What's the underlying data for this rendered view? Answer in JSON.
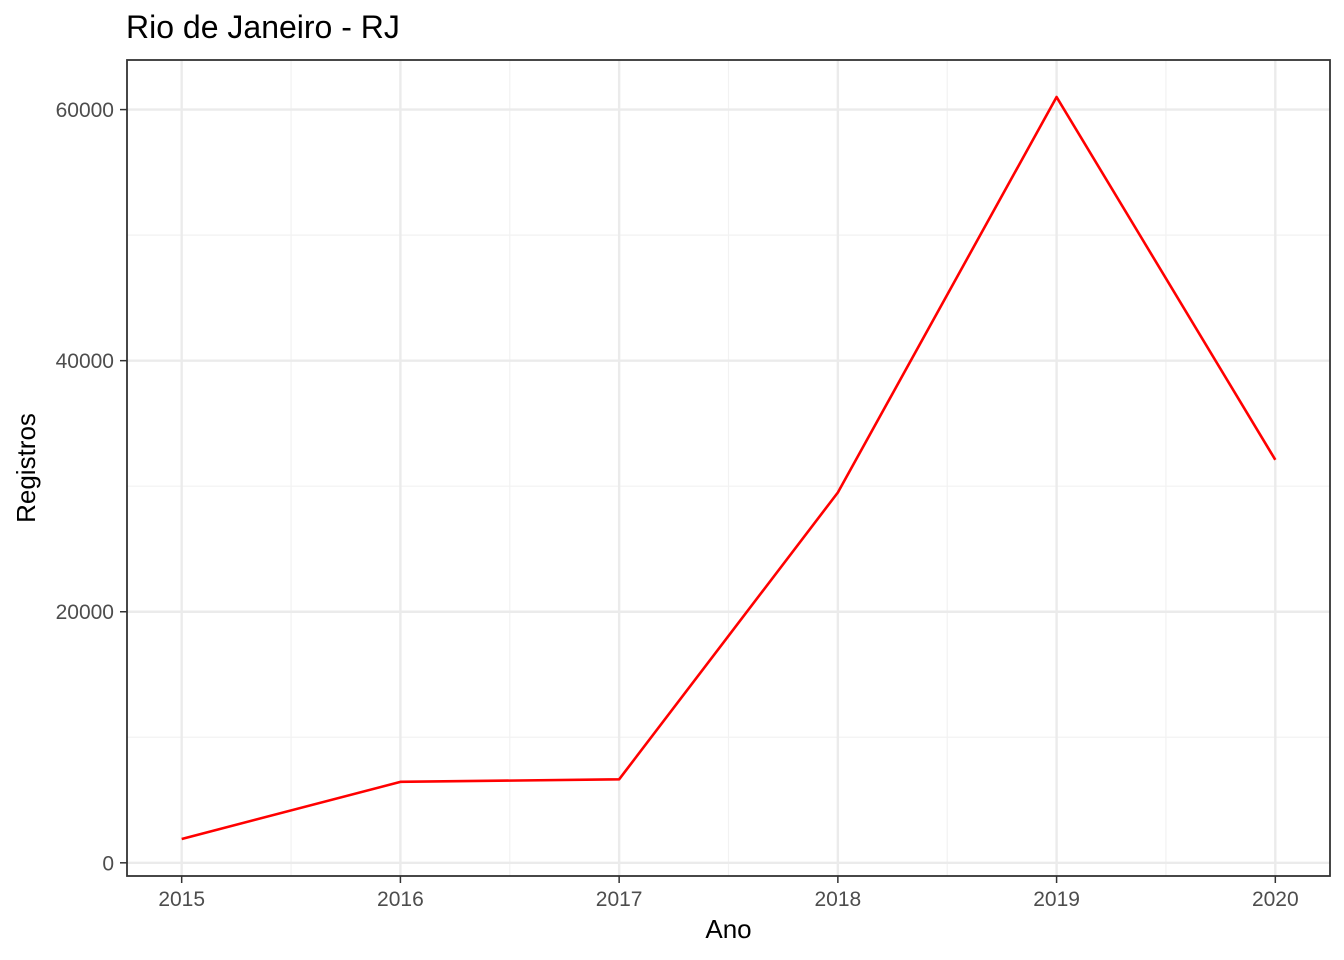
{
  "chart_data": {
    "type": "line",
    "title": "Rio de Janeiro - RJ",
    "xlabel": "Ano",
    "ylabel": "Registros",
    "x": [
      2015,
      2016,
      2017,
      2018,
      2019,
      2020
    ],
    "series": [
      {
        "values": [
          1900,
          6450,
          6650,
          29500,
          61000,
          32100
        ],
        "color": "#ff0000"
      }
    ],
    "x_ticks": [
      2015,
      2016,
      2017,
      2018,
      2019,
      2020
    ],
    "y_ticks": [
      0,
      20000,
      40000,
      60000
    ],
    "x_tick_labels": [
      "2015",
      "2016",
      "2017",
      "2018",
      "2019",
      "2020"
    ],
    "y_tick_labels": [
      "0",
      "20000",
      "40000",
      "60000"
    ],
    "xlim": [
      2014.75,
      2020.25
    ],
    "ylim": [
      -1050,
      63950
    ],
    "grid": true,
    "legend": "none"
  }
}
